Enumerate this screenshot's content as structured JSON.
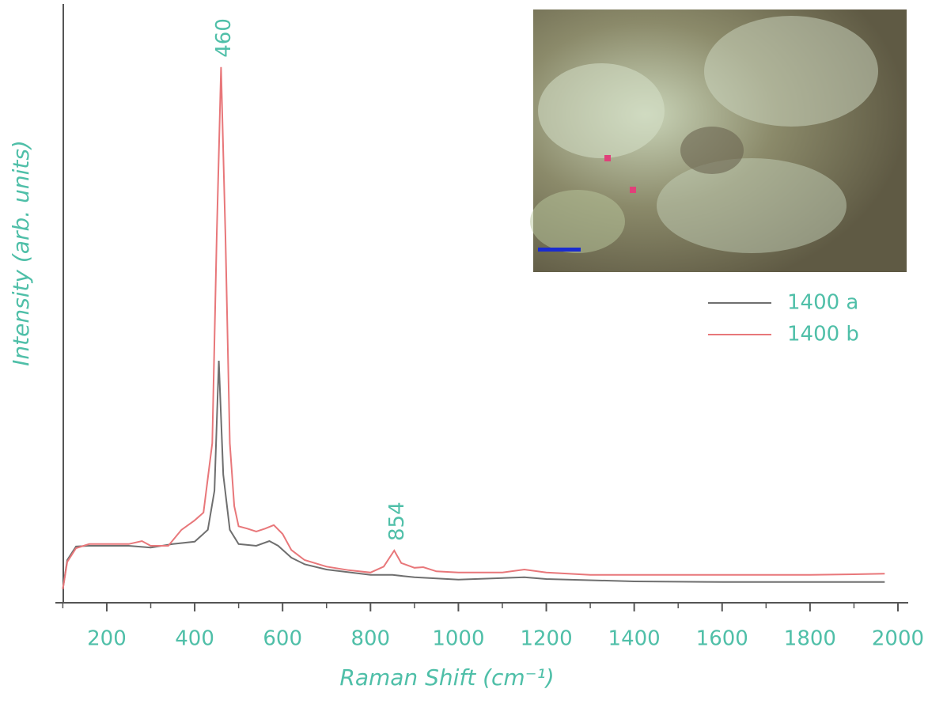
{
  "chart_data": {
    "type": "line",
    "xlabel": "Raman Shift (cm⁻¹)",
    "ylabel": "Intensity (arb. units)",
    "xlim": [
      100,
      2020
    ],
    "ylim": [
      0,
      100
    ],
    "xticks": [
      200,
      400,
      600,
      800,
      1000,
      1200,
      1400,
      1600,
      1800,
      2000
    ],
    "xminorticks": [
      100,
      300,
      500,
      700,
      900,
      1100,
      1300,
      1500,
      1700,
      1900
    ],
    "legend": "right",
    "peak_labels": [
      460,
      854
    ],
    "series": [
      {
        "name": "1400 a",
        "color": "#6f6f6f",
        "x": [
          100,
          110,
          130,
          160,
          200,
          250,
          300,
          350,
          400,
          430,
          445,
          455,
          465,
          480,
          500,
          540,
          570,
          590,
          620,
          650,
          700,
          800,
          850,
          900,
          1000,
          1150,
          1200,
          1400,
          1600,
          1970
        ],
        "values": [
          2.3,
          7.2,
          9.5,
          9.6,
          9.6,
          9.6,
          9.3,
          9.9,
          10.3,
          12.3,
          18.9,
          40.8,
          21.6,
          12.3,
          9.9,
          9.6,
          10.4,
          9.6,
          7.6,
          6.5,
          5.6,
          4.7,
          4.7,
          4.3,
          3.9,
          4.3,
          4.0,
          3.6,
          3.5,
          3.5
        ]
      },
      {
        "name": "1400 b",
        "color": "#e8777a",
        "x": [
          100,
          110,
          130,
          160,
          200,
          250,
          280,
          300,
          340,
          370,
          400,
          420,
          440,
          450,
          460,
          470,
          480,
          490,
          500,
          520,
          540,
          560,
          580,
          600,
          620,
          650,
          700,
          750,
          800,
          830,
          854,
          870,
          900,
          920,
          950,
          1000,
          1100,
          1150,
          1200,
          1300,
          1400,
          1600,
          1800,
          1900,
          1970
        ],
        "values": [
          2.3,
          6.9,
          9.2,
          9.9,
          9.9,
          9.9,
          10.4,
          9.6,
          9.6,
          12.3,
          13.9,
          15.2,
          26.9,
          61.6,
          90.3,
          61.6,
          26.9,
          16.3,
          12.9,
          12.5,
          12.0,
          12.5,
          13.1,
          11.6,
          8.9,
          7.2,
          6.1,
          5.5,
          5.1,
          6.1,
          8.8,
          6.7,
          5.9,
          6.0,
          5.3,
          5.1,
          5.1,
          5.6,
          5.1,
          4.7,
          4.7,
          4.7,
          4.7,
          4.8,
          4.9
        ]
      }
    ]
  }
}
